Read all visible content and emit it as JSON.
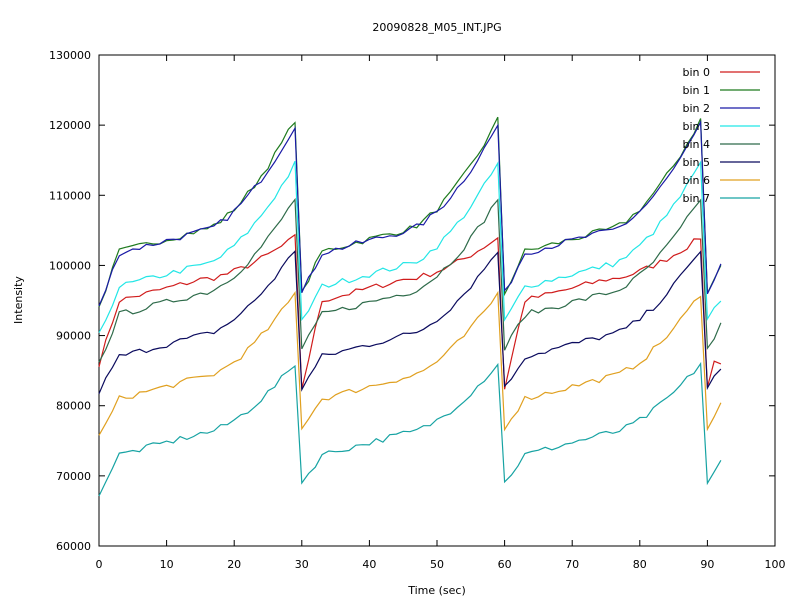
{
  "chart_data": {
    "type": "line",
    "title": "20090828_M05_INT.JPG",
    "xlabel": "Time (sec)",
    "ylabel": "Intensity",
    "xlim": [
      0,
      100
    ],
    "ylim": [
      60000,
      130000
    ],
    "xticks": [
      0,
      10,
      20,
      30,
      40,
      50,
      60,
      70,
      80,
      90,
      100
    ],
    "yticks": [
      60000,
      70000,
      80000,
      90000,
      100000,
      110000,
      120000,
      130000
    ],
    "grid": false,
    "legend_position": "top-right",
    "series": [
      {
        "name": "bin 0",
        "color": "#d01c1c",
        "values": [
          86000,
          95000,
          104000,
          82500,
          86000
        ]
      },
      {
        "name": "bin 1",
        "color": "#1e7a1e",
        "values": [
          94000,
          102000,
          120800,
          96000,
          100000
        ]
      },
      {
        "name": "bin 2",
        "color": "#1a1aa6",
        "values": [
          94000,
          101800,
          120000,
          96000,
          99800
        ]
      },
      {
        "name": "bin 3",
        "color": "#22e6e6",
        "values": [
          90000,
          97000,
          114500,
          92000,
          95200
        ]
      },
      {
        "name": "bin 4",
        "color": "#2e6b4a",
        "values": [
          86000,
          93000,
          109500,
          88000,
          91500
        ]
      },
      {
        "name": "bin 5",
        "color": "#0b0b5e",
        "values": [
          82000,
          87000,
          102200,
          82500,
          85500
        ]
      },
      {
        "name": "bin 6",
        "color": "#e0a020",
        "values": [
          75500,
          81000,
          96000,
          77000,
          80200
        ]
      },
      {
        "name": "bin 7",
        "color": "#17a3a3",
        "values": [
          67500,
          73000,
          86000,
          69000,
          72000
        ]
      }
    ]
  }
}
